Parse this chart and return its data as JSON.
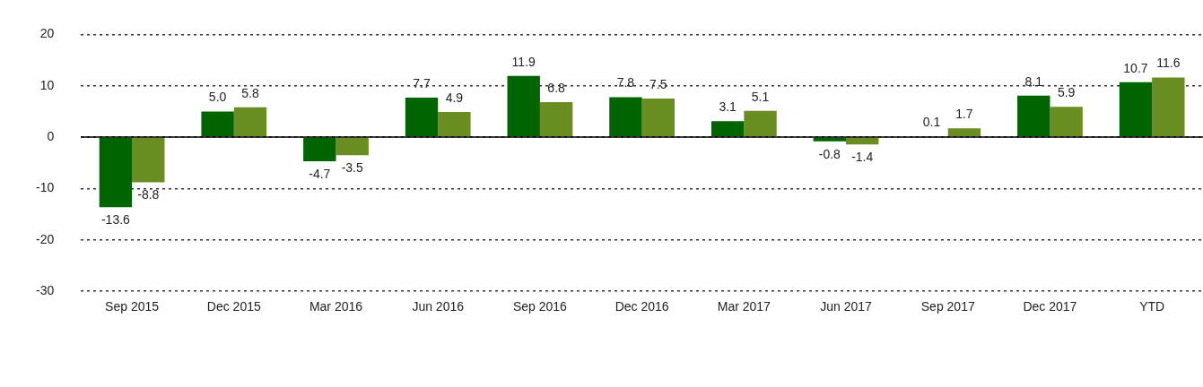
{
  "chart_data": {
    "type": "bar",
    "categories": [
      "Sep 2015",
      "Dec 2015",
      "Mar 2016",
      "Jun 2016",
      "Sep 2016",
      "Dec 2016",
      "Mar 2017",
      "Jun 2017",
      "Sep 2017",
      "Dec 2017",
      "YTD"
    ],
    "series": [
      {
        "color": "#006400",
        "values": [
          -13.6,
          5.0,
          -4.7,
          7.7,
          11.9,
          7.8,
          3.1,
          -0.8,
          0.1,
          8.1,
          10.7
        ],
        "value_labels": [
          "-13.6",
          "5.0",
          "-4.7",
          "7.7",
          "11.9",
          "7.8",
          "3.1",
          "-0.8",
          "0.1",
          "8.1",
          "10.7"
        ]
      },
      {
        "color": "#6b8e23",
        "values": [
          -8.8,
          5.8,
          -3.5,
          4.9,
          6.8,
          7.5,
          5.1,
          -1.4,
          1.7,
          5.9,
          11.6
        ],
        "value_labels": [
          "-8.8",
          "5.8",
          "-3.5",
          "4.9",
          "6.8",
          "7.5",
          "5.1",
          "-1.4",
          "1.7",
          "5.9",
          "11.6"
        ]
      }
    ],
    "ylim": [
      -30,
      20
    ],
    "yticks": [
      -30,
      -20,
      -10,
      0,
      10,
      20
    ],
    "grid": "y"
  }
}
